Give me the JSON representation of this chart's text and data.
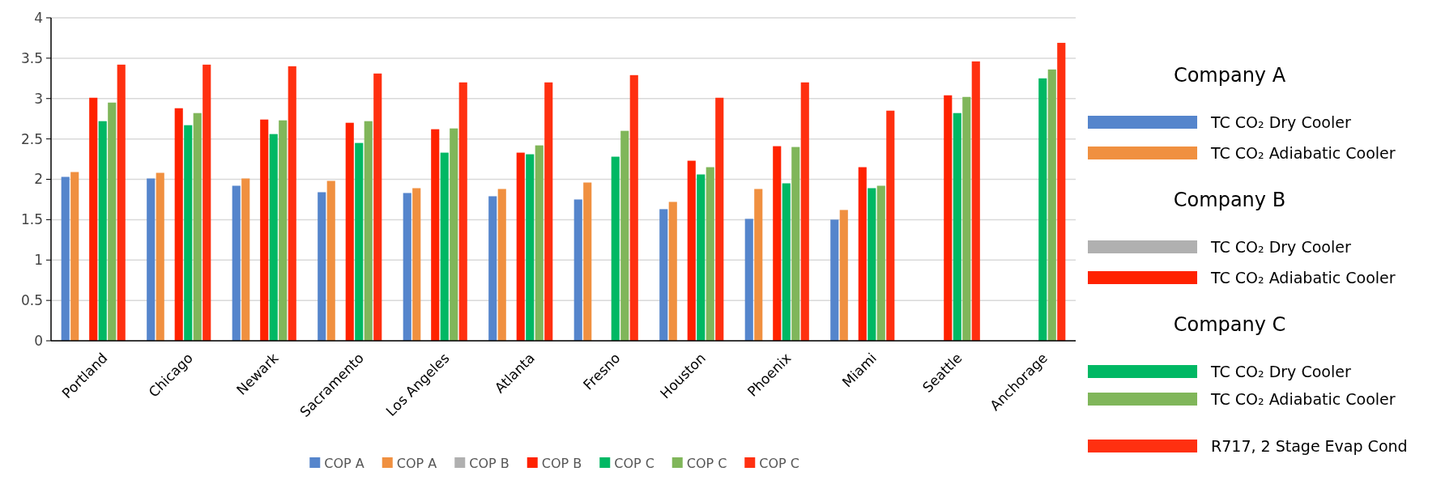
{
  "chart_data": {
    "type": "bar",
    "categories": [
      "Portland",
      "Chicago",
      "Newark",
      "Sacramento",
      "Los Angeles",
      "Atlanta",
      "Fresno",
      "Houston",
      "Phoenix",
      "Miami",
      "Seattle",
      "Anchorage"
    ],
    "series": [
      {
        "name": "COP A",
        "color": "#5585cc",
        "values": [
          2.03,
          2.01,
          1.92,
          1.84,
          1.83,
          1.79,
          1.75,
          1.63,
          1.51,
          1.5,
          null,
          null
        ]
      },
      {
        "name": "COP A",
        "color": "#f09040",
        "values": [
          2.09,
          2.08,
          2.01,
          1.98,
          1.89,
          1.88,
          1.96,
          1.72,
          1.88,
          1.62,
          null,
          null
        ]
      },
      {
        "name": "COP B",
        "color": "#b0b0b0",
        "values": [
          null,
          null,
          null,
          null,
          null,
          null,
          null,
          null,
          null,
          null,
          null,
          null
        ]
      },
      {
        "name": "COP B",
        "color": "#ff2200",
        "values": [
          3.01,
          2.88,
          2.74,
          2.7,
          2.62,
          2.33,
          null,
          2.23,
          2.41,
          2.15,
          3.04,
          null
        ]
      },
      {
        "name": "COP C",
        "color": "#00b864",
        "values": [
          2.72,
          2.67,
          2.56,
          2.45,
          2.33,
          2.31,
          2.28,
          2.06,
          1.95,
          1.89,
          2.82,
          3.25
        ]
      },
      {
        "name": "COP C",
        "color": "#80b65a",
        "values": [
          2.95,
          2.82,
          2.73,
          2.72,
          2.63,
          2.42,
          2.6,
          2.15,
          2.4,
          1.92,
          3.02,
          3.36
        ]
      },
      {
        "name": "COP C",
        "color": "#ff3010",
        "values": [
          3.42,
          3.42,
          3.4,
          3.31,
          3.2,
          3.2,
          3.29,
          3.01,
          3.2,
          2.85,
          3.46,
          3.69
        ]
      }
    ],
    "ylim": [
      0,
      4
    ],
    "yticks": [
      0,
      0.5,
      1,
      1.5,
      2,
      2.5,
      3,
      3.5,
      4
    ],
    "grid": "y",
    "legend": "bottom",
    "annotations": [
      "Company A",
      "TC CO₂ Dry Cooler",
      "TC CO₂ Adiabatic Cooler",
      "Company B",
      "TC CO₂ Dry Cooler",
      "TC CO₂ Adiabatic Cooler",
      "Company C",
      "TC CO₂ Dry Cooler",
      "TC CO₂ Adiabatic Cooler",
      "R717, 2 Stage Evap Cond"
    ]
  }
}
